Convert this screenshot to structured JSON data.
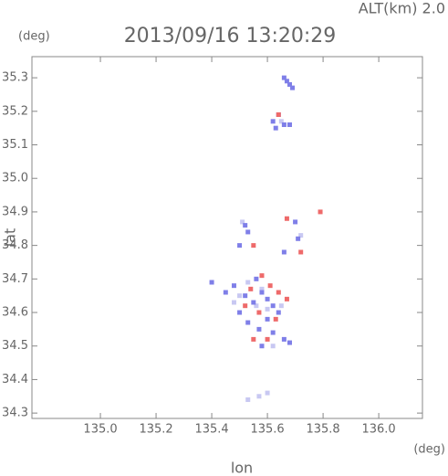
{
  "chart_data": {
    "type": "scatter",
    "title": "2013/09/16 13:20:29",
    "subtitle": "ALT(km) 2.0",
    "y_unit": "(deg)",
    "x_unit": "(deg)",
    "xlabel": "lon",
    "ylabel": "lat",
    "xlim": [
      134.754,
      136.157
    ],
    "ylim": [
      34.284,
      35.363
    ],
    "xticks": [
      {
        "value": 135,
        "label": "135.0"
      },
      135.2,
      135.4,
      135.6,
      135.8,
      {
        "value": 136,
        "label": "136.0"
      }
    ],
    "yticks": [
      34.3,
      34.4,
      34.5,
      34.6,
      34.7,
      34.8,
      34.9,
      {
        "value": 35,
        "label": "35.0"
      },
      35.1,
      35.2,
      35.3
    ],
    "series": [
      {
        "color": "#c8c8f2",
        "x": [
          135.5,
          135.53,
          135.56,
          135.6,
          135.65,
          135.58,
          135.48,
          135.62,
          135.57,
          135.53,
          135.6,
          135.72,
          135.51,
          135.65
        ],
        "values": [
          34.65,
          34.69,
          34.62,
          34.61,
          34.62,
          34.67,
          34.63,
          34.5,
          34.35,
          34.34,
          34.36,
          34.83,
          34.87,
          35.17
        ]
      },
      {
        "color": "#7f7fe8",
        "x": [
          135.66,
          135.67,
          135.68,
          135.69,
          135.64,
          135.62,
          135.66,
          135.68,
          135.63,
          135.52,
          135.53,
          135.5,
          135.7,
          135.71,
          135.66,
          135.45,
          135.48,
          135.52,
          135.55,
          135.58,
          135.6,
          135.62,
          135.64,
          135.5,
          135.53,
          135.57,
          135.6,
          135.62,
          135.66,
          135.58,
          135.4,
          135.68,
          135.56
        ],
        "values": [
          35.3,
          35.29,
          35.28,
          35.27,
          35.19,
          35.17,
          35.16,
          35.16,
          35.15,
          34.86,
          34.84,
          34.8,
          34.87,
          34.82,
          34.78,
          34.66,
          34.68,
          34.65,
          34.63,
          34.66,
          34.64,
          34.62,
          34.6,
          34.6,
          34.57,
          34.55,
          34.58,
          34.54,
          34.52,
          34.5,
          34.69,
          34.51,
          34.7
        ]
      },
      {
        "color": "#ee6a6a",
        "x": [
          135.54,
          135.58,
          135.61,
          135.64,
          135.52,
          135.57,
          135.63,
          135.6,
          135.55,
          135.79,
          135.67,
          135.72,
          135.55,
          135.64,
          135.67
        ],
        "values": [
          34.67,
          34.71,
          34.68,
          34.66,
          34.62,
          34.6,
          34.58,
          34.52,
          34.52,
          34.9,
          34.88,
          34.78,
          34.8,
          35.19,
          34.64
        ]
      }
    ]
  }
}
